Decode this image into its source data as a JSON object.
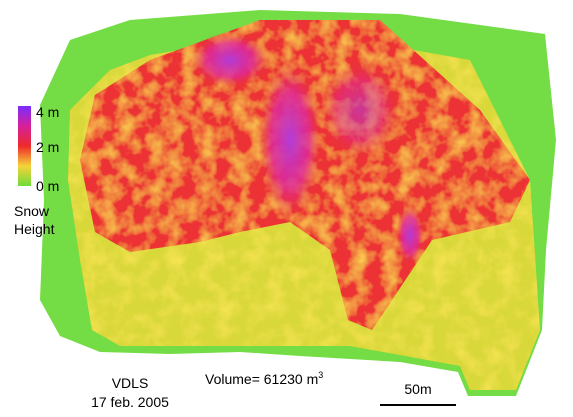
{
  "legend": {
    "ticks": [
      "4 m",
      "2 m",
      "0 m"
    ],
    "title_line1": "Snow",
    "title_line2": "Height"
  },
  "annotations": {
    "site": "VDLS",
    "date": "17 feb. 2005",
    "volume": "Volume= 61230 m",
    "volume_exponent": "3"
  },
  "scale_bar": {
    "label": "50m"
  }
}
